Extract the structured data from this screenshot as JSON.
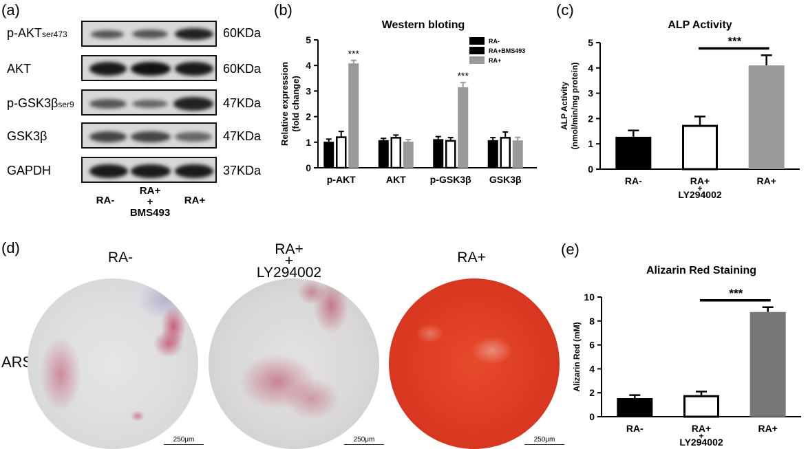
{
  "panels": {
    "a": {
      "label": "(a)",
      "blots": [
        {
          "name_main": "p-AKT",
          "name_sub": "ser473",
          "size": "60KDa"
        },
        {
          "name_main": "AKT",
          "name_sub": "",
          "size": "60KDa"
        },
        {
          "name_main": "p-GSK3β",
          "name_sub": "ser9",
          "size": "47KDa"
        },
        {
          "name_main": "GSK3β",
          "name_sub": "",
          "size": "47KDa"
        },
        {
          "name_main": "GAPDH",
          "name_sub": "",
          "size": "37KDa"
        }
      ],
      "lanes": {
        "l1": "RA-",
        "l2a": "RA+",
        "l2b": "+",
        "l2c": "BMS493",
        "l3": "RA+"
      }
    },
    "b": {
      "label": "(b)"
    },
    "c": {
      "label": "(c)"
    },
    "d": {
      "label": "(d)",
      "row_label": "ARS",
      "conditions": {
        "c1": "RA-",
        "c2a": "RA+",
        "c2b": "+",
        "c2c": "LY294002",
        "c3": "RA+"
      },
      "scale_bar": "250μm"
    },
    "e": {
      "label": "(e)"
    }
  },
  "chart_data": [
    {
      "type": "bar",
      "title": "Western bloting",
      "ylabel": "Relative expression (fold change)",
      "ylabel_lines": [
        "Relative expression",
        "(fold change)"
      ],
      "categories": [
        "p-AKT",
        "AKT",
        "p-GSK3β",
        "GSK3β"
      ],
      "ylim": [
        0,
        5
      ],
      "yticks": [
        "0",
        "1",
        "2",
        "3",
        "4",
        "5"
      ],
      "series": [
        {
          "name": "RA-",
          "values": [
            1.02,
            1.08,
            1.12,
            1.08
          ],
          "errors": [
            0.1,
            0.07,
            0.1,
            0.1
          ],
          "color": "#000000"
        },
        {
          "name": "RA+BMS493",
          "values": [
            1.22,
            1.2,
            1.08,
            1.2
          ],
          "errors": [
            0.2,
            0.08,
            0.1,
            0.2
          ],
          "color": "#000000",
          "hollow": true
        },
        {
          "name": "RA+",
          "values": [
            4.08,
            1.02,
            3.15,
            1.07
          ],
          "errors": [
            0.12,
            0.08,
            0.18,
            0.12
          ],
          "color": "#999999"
        }
      ],
      "annotations": [
        {
          "category": "p-AKT",
          "text": "***"
        },
        {
          "category": "p-GSK3β",
          "text": "***"
        }
      ],
      "legend": "top-right"
    },
    {
      "type": "bar",
      "title": "ALP Activity",
      "ylabel": "ALP Activity (nmol/min/mg protein)",
      "ylabel_lines": [
        "ALP Activity",
        "(nmol/min/mg protein)"
      ],
      "categories": [
        "RA-",
        "RA+ + LY294002",
        "RA+"
      ],
      "category_lines": [
        [
          "RA-"
        ],
        [
          "RA+",
          "+",
          "LY294002"
        ],
        [
          "RA+"
        ]
      ],
      "ylim": [
        0,
        5
      ],
      "yticks": [
        "0",
        "1",
        "2",
        "3",
        "4",
        "5"
      ],
      "values": [
        1.28,
        1.75,
        4.1
      ],
      "errors": [
        0.25,
        0.33,
        0.4
      ],
      "colors": [
        "#000000",
        "#ffffff",
        "#999999"
      ],
      "significance": {
        "from": 1,
        "to": 2,
        "text": "***"
      }
    },
    {
      "type": "bar",
      "title": "Alizarin Red  Staining",
      "ylabel": "Alizarin Red  (mM)",
      "categories": [
        "RA-",
        "RA+ + LY294002",
        "RA+"
      ],
      "category_lines": [
        [
          "RA-"
        ],
        [
          "RA+",
          "+",
          "LY294002"
        ],
        [
          "RA+"
        ]
      ],
      "ylim": [
        0,
        10
      ],
      "yticks": [
        "0",
        "2",
        "4",
        "6",
        "8",
        "10"
      ],
      "values": [
        1.55,
        1.8,
        8.75
      ],
      "errors": [
        0.25,
        0.3,
        0.4
      ],
      "colors": [
        "#000000",
        "#ffffff",
        "#777777"
      ],
      "significance": {
        "from": 1,
        "to": 2,
        "text": "***"
      }
    }
  ]
}
